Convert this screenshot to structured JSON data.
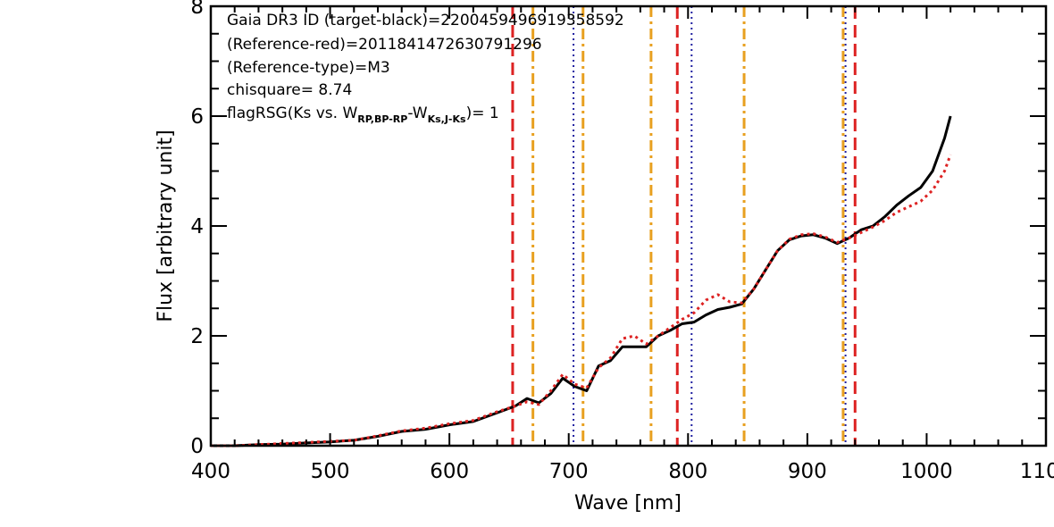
{
  "chart_data": {
    "type": "line",
    "xlabel": "Wave [nm]",
    "ylabel": "Flux [arbitrary unit]",
    "xlim": [
      400,
      1100
    ],
    "ylim": [
      0,
      8
    ],
    "x_ticks": [
      400,
      500,
      600,
      700,
      800,
      900,
      1000,
      1100
    ],
    "x_tick_labels": [
      "400",
      "500",
      "600",
      "700",
      "800",
      "900",
      "1000",
      "1100"
    ],
    "y_ticks": [
      0,
      2,
      4,
      6,
      8
    ],
    "y_tick_labels": [
      "0",
      "2",
      "4",
      "6",
      "8"
    ],
    "annotations": {
      "gaia_id": "Gaia DR3 ID (target-black)=2200459496919358592",
      "reference_red": "(Reference-red)=2011841472630791296",
      "reference_type": "(Reference-type)=M3",
      "chisquare": "chisquare= 8.74",
      "flag_prefix": "flagRSG(Ks vs. W",
      "flag_sub1": "RP,BP-RP",
      "flag_mid": "-W",
      "flag_sub2": "Ks,J-Ks",
      "flag_suffix": ")= 1"
    },
    "vertical_lines": {
      "red_dashed": [
        653,
        791,
        940
      ],
      "orange_dashdot": [
        670,
        712,
        769,
        847,
        930
      ],
      "blue_dotted": [
        704,
        803,
        932
      ],
      "colors": {
        "red": "#dd2222",
        "orange": "#e8a020",
        "blue": "#2020a0"
      }
    },
    "series": [
      {
        "color": "#000000",
        "style": "solid",
        "x": [
          400,
          420,
          440,
          460,
          480,
          500,
          520,
          540,
          560,
          580,
          600,
          620,
          640,
          655,
          665,
          675,
          685,
          695,
          705,
          715,
          725,
          735,
          745,
          755,
          765,
          775,
          785,
          795,
          805,
          815,
          825,
          835,
          845,
          855,
          865,
          875,
          885,
          895,
          905,
          915,
          925,
          935,
          945,
          955,
          965,
          975,
          985,
          995,
          1005,
          1015,
          1020
        ],
        "y": [
          0.0,
          0.0,
          0.02,
          0.03,
          0.05,
          0.07,
          0.1,
          0.17,
          0.26,
          0.3,
          0.38,
          0.44,
          0.6,
          0.72,
          0.86,
          0.78,
          0.95,
          1.23,
          1.08,
          1.0,
          1.45,
          1.55,
          1.8,
          1.8,
          1.8,
          2.0,
          2.1,
          2.22,
          2.25,
          2.38,
          2.48,
          2.52,
          2.58,
          2.85,
          3.2,
          3.55,
          3.75,
          3.82,
          3.84,
          3.78,
          3.68,
          3.78,
          3.93,
          4.0,
          4.17,
          4.38,
          4.55,
          4.7,
          5.0,
          5.6,
          6.0
        ]
      },
      {
        "color": "#dd2222",
        "style": "dotted",
        "x": [
          400,
          420,
          440,
          460,
          480,
          500,
          520,
          540,
          560,
          580,
          600,
          620,
          640,
          655,
          665,
          675,
          685,
          695,
          705,
          715,
          725,
          735,
          745,
          755,
          765,
          775,
          785,
          795,
          805,
          815,
          825,
          835,
          845,
          855,
          865,
          875,
          885,
          895,
          905,
          915,
          925,
          935,
          945,
          955,
          965,
          975,
          985,
          995,
          1005,
          1015,
          1020
        ],
        "y": [
          0.0,
          0.0,
          0.02,
          0.04,
          0.06,
          0.08,
          0.1,
          0.18,
          0.27,
          0.32,
          0.4,
          0.46,
          0.62,
          0.72,
          0.8,
          0.75,
          1.0,
          1.3,
          1.12,
          1.05,
          1.42,
          1.6,
          1.95,
          2.0,
          1.85,
          2.0,
          2.15,
          2.3,
          2.42,
          2.65,
          2.75,
          2.62,
          2.6,
          2.85,
          3.2,
          3.55,
          3.76,
          3.84,
          3.86,
          3.8,
          3.7,
          3.78,
          3.88,
          3.98,
          4.1,
          4.25,
          4.35,
          4.45,
          4.65,
          5.0,
          5.3
        ]
      }
    ]
  }
}
